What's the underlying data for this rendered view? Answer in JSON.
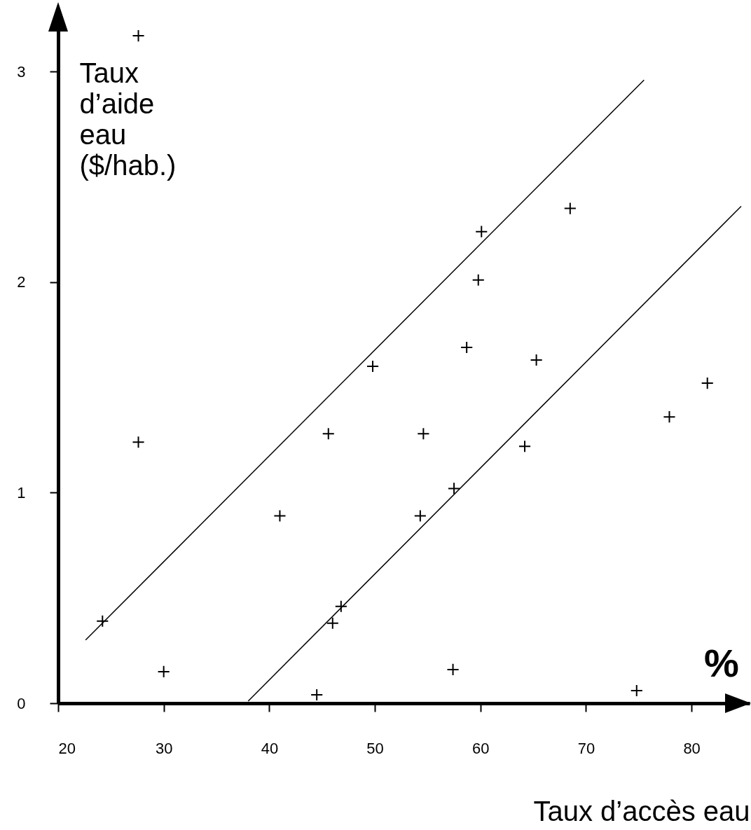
{
  "chart_data": {
    "type": "scatter",
    "xlabel": "Taux d’accès eau",
    "ylabel": "Taux d’aide eau ($/hab.)",
    "annotations": [
      "%"
    ],
    "xlim": [
      20,
      85.5
    ],
    "ylim": [
      0,
      3.29
    ],
    "xticks": [
      20,
      30,
      40,
      50,
      60,
      70,
      80
    ],
    "yticks": [
      0,
      1,
      2,
      3
    ],
    "grid": false,
    "series": [
      {
        "marker": "cross",
        "color": "#000000",
        "x": [
          27.6,
          27.6,
          24.2,
          30.0,
          41.0,
          45.6,
          49.8,
          54.6,
          54.3,
          57.5,
          46.0,
          46.8,
          44.5,
          57.4,
          60.1,
          59.8,
          58.7,
          65.3,
          64.2,
          68.5,
          74.8,
          77.9,
          81.5
        ],
        "values": [
          3.17,
          1.24,
          0.39,
          0.15,
          0.89,
          1.28,
          1.6,
          1.28,
          0.89,
          1.02,
          0.38,
          0.46,
          0.04,
          0.16,
          2.24,
          2.01,
          1.69,
          1.63,
          1.22,
          2.35,
          0.06,
          1.36,
          1.52
        ]
      },
      {
        "type": "line",
        "color": "#000000",
        "x": [
          22.6,
          75.5
        ],
        "values": [
          0.3,
          2.96
        ]
      },
      {
        "type": "line",
        "color": "#000000",
        "x": [
          38.0,
          84.7
        ],
        "values": [
          0.01,
          2.36
        ]
      }
    ]
  }
}
